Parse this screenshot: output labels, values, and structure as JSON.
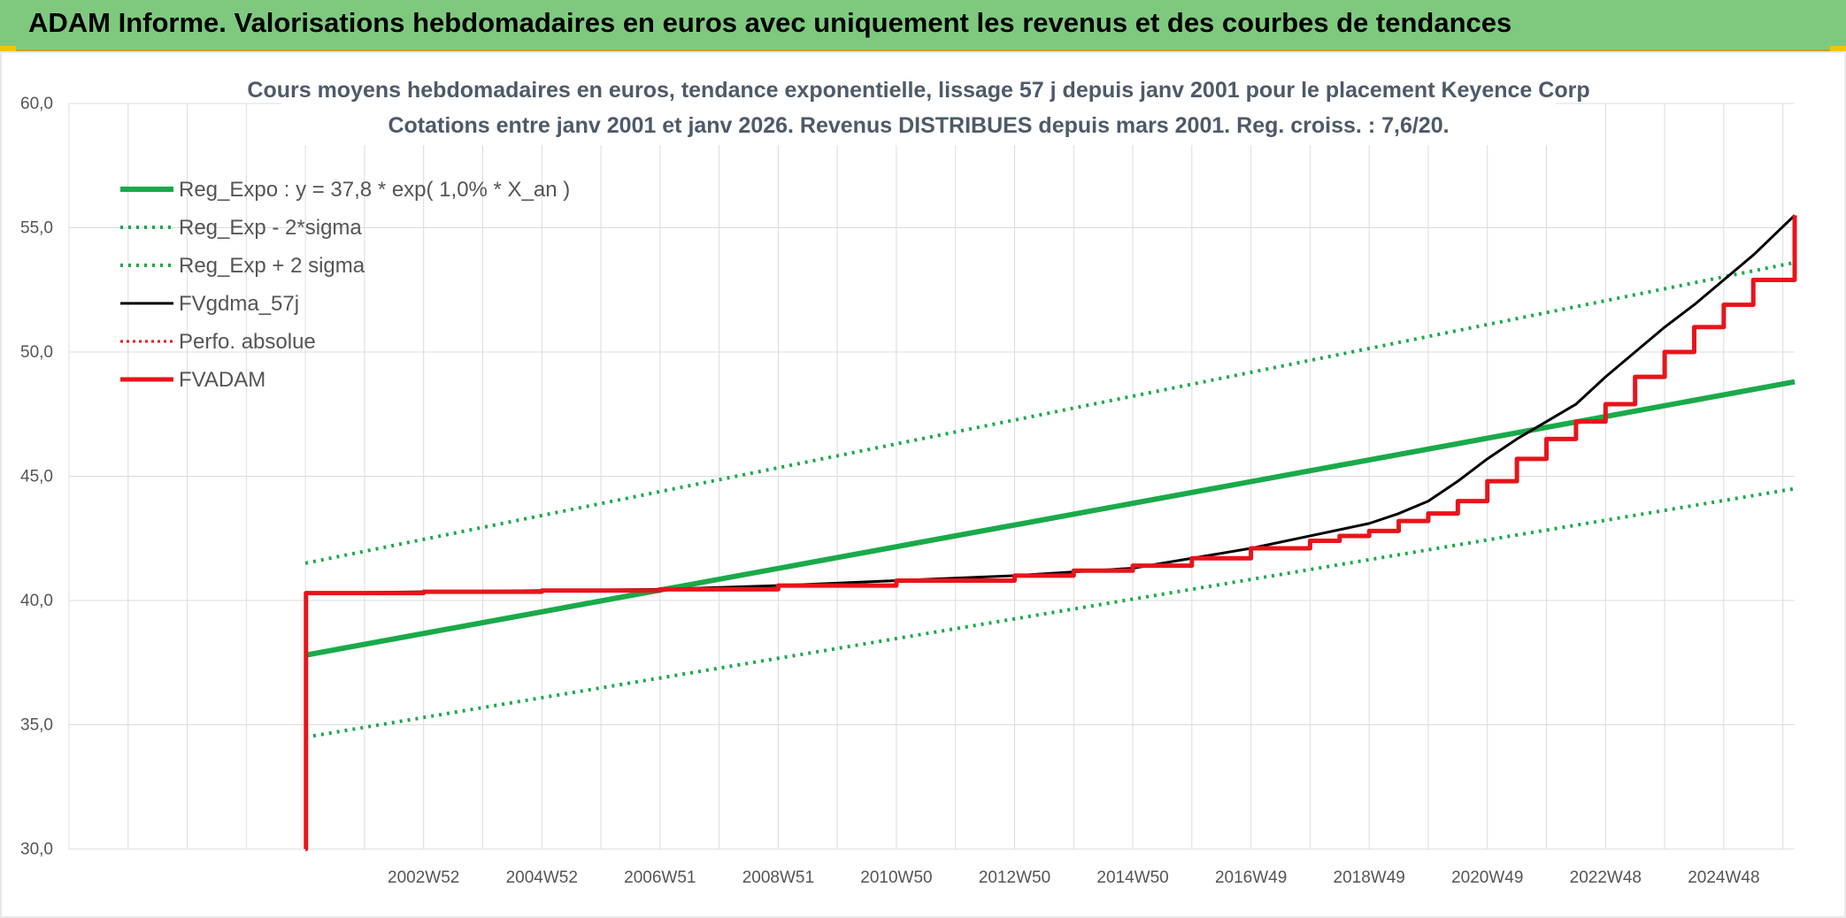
{
  "banner": {
    "title": "ADAM Informe. Valorisations hebdomadaires en euros avec uniquement les revenus et des courbes de tendances"
  },
  "colors": {
    "banner_bg": "#7fc97f",
    "reg": "#1aaa4a",
    "black": "#000000",
    "red": "#e8141a",
    "grid": "#dcdcdc"
  },
  "chart_data": {
    "type": "line",
    "title": "Cours moyens hebdomadaires en euros, tendance exponentielle, lissage 57 j depuis janv 2001 pour le placement Keyence Corp",
    "subtitle": "Cotations entre janv 2001 et janv 2026. Revenus DISTRIBUES depuis mars 2001. Reg. croiss. : 7,6/20.",
    "ylim": [
      30,
      60
    ],
    "yticks": [
      "60,0",
      "55,0",
      "50,0",
      "45,0",
      "40,0",
      "35,0",
      "30,0"
    ],
    "xlim": [
      1997,
      2026.2
    ],
    "x_tick_labels": [
      "2002W52",
      "2004W52",
      "2006W51",
      "2008W51",
      "2010W50",
      "2012W50",
      "2014W50",
      "2016W49",
      "2018W49",
      "2020W49",
      "2022W48",
      "2024W48"
    ],
    "x_tick_years": [
      2003,
      2005,
      2007,
      2009,
      2011,
      2013,
      2015,
      2017,
      2019,
      2021,
      2023,
      2025
    ],
    "legend_position": "top-left",
    "grid": true,
    "series": [
      {
        "name": "Reg_Expo : y = 37,8 * exp( 1,0% *  X_an )",
        "style": "solid-green-thick",
        "x": [
          2001.0,
          2026.2
        ],
        "y": [
          37.8,
          48.8
        ]
      },
      {
        "name": "Reg_Exp - 2*sigma",
        "style": "dotted-green",
        "x": [
          2001.0,
          2026.2
        ],
        "y": [
          34.5,
          44.5
        ]
      },
      {
        "name": "Reg_Exp + 2 sigma",
        "style": "dotted-green",
        "x": [
          2001.0,
          2026.2
        ],
        "y": [
          41.5,
          53.6
        ]
      },
      {
        "name": "FVgdma_57j",
        "style": "solid-black",
        "x": [
          2001.0,
          2001.01,
          2003,
          2005,
          2007,
          2009,
          2011,
          2013,
          2015,
          2016,
          2017,
          2018,
          2019,
          2019.5,
          2020,
          2020.5,
          2021,
          2021.5,
          2022,
          2022.5,
          2023,
          2023.5,
          2024,
          2024.5,
          2025,
          2025.5,
          2026.2
        ],
        "y": [
          30.0,
          40.3,
          40.35,
          40.4,
          40.45,
          40.6,
          40.8,
          41.0,
          41.3,
          41.7,
          42.1,
          42.6,
          43.1,
          43.5,
          44.0,
          44.8,
          45.7,
          46.5,
          47.2,
          47.9,
          49.0,
          50.0,
          51.0,
          51.9,
          52.9,
          53.9,
          55.5
        ]
      },
      {
        "name": "Perfo. absolue",
        "style": "dotted-red",
        "x": [],
        "y": []
      },
      {
        "name": "FVADAM",
        "style": "step-red-thick",
        "x": [
          2001.0,
          2001.01,
          2003,
          2005,
          2007,
          2009,
          2011,
          2013,
          2014,
          2015,
          2016,
          2017,
          2018,
          2018.5,
          2019,
          2019.5,
          2020,
          2020.5,
          2021,
          2021.5,
          2022,
          2022.5,
          2023,
          2023.5,
          2024,
          2024.5,
          2025,
          2025.5,
          2026.2
        ],
        "y": [
          30.0,
          40.3,
          40.35,
          40.4,
          40.45,
          40.6,
          40.8,
          41.0,
          41.2,
          41.4,
          41.7,
          42.1,
          42.4,
          42.6,
          42.8,
          43.2,
          43.5,
          44.0,
          44.8,
          45.7,
          46.5,
          47.2,
          47.9,
          49.0,
          50.0,
          51.0,
          51.9,
          52.9,
          55.5
        ]
      }
    ]
  }
}
